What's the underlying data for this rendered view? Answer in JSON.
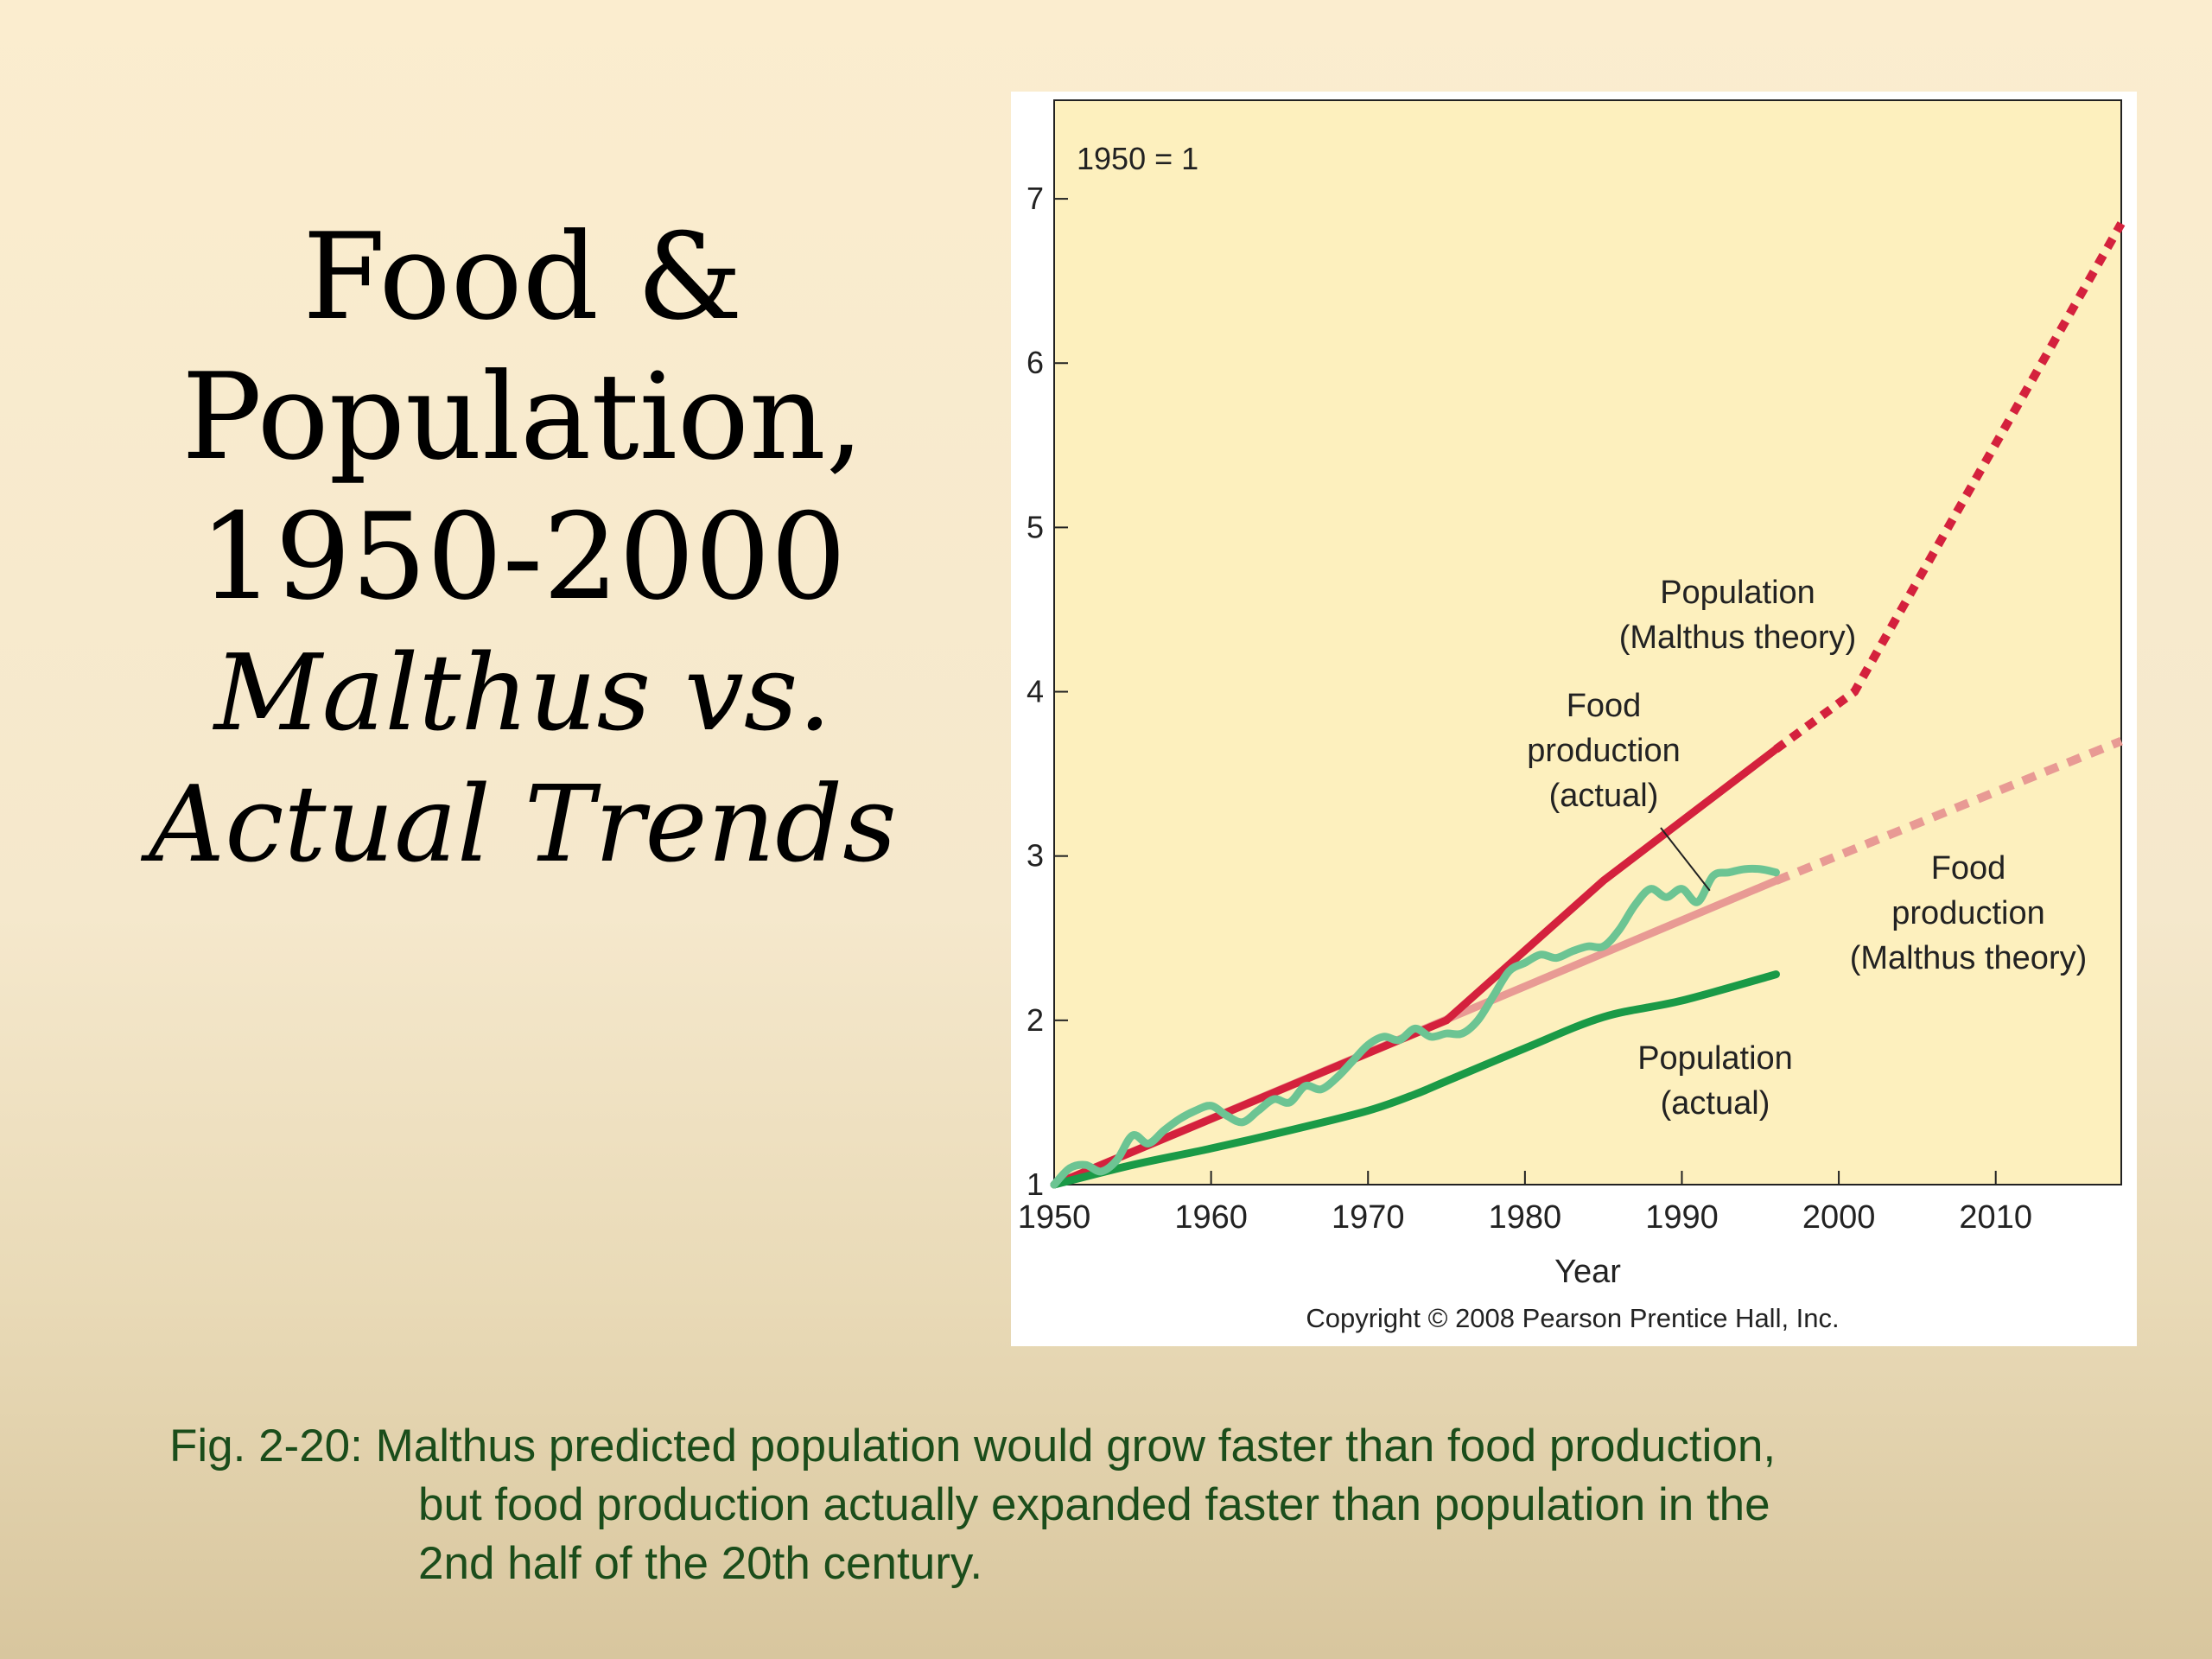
{
  "slide": {
    "title_lines": [
      "Food &",
      "Population,",
      "1950-2000"
    ],
    "subtitle_lines": [
      "Malthus vs.",
      "Actual Trends"
    ],
    "caption_lines": [
      "Fig. 2-20: Malthus predicted population would grow faster than food production,",
      "but food production actually expanded faster than population in the",
      "2nd half of the 20th century."
    ]
  },
  "chart_data": {
    "type": "line",
    "title": "",
    "index_note": "1950 = 1",
    "xlabel": "Year",
    "ylabel": "",
    "xlim": [
      1950,
      2018
    ],
    "ylim": [
      1,
      7.6
    ],
    "x_ticks": [
      1950,
      1960,
      1970,
      1980,
      1990,
      2000,
      2010
    ],
    "y_ticks": [
      1,
      2,
      3,
      4,
      5,
      6,
      7
    ],
    "grid": false,
    "copyright": "Copyright © 2008 Pearson Prentice Hall, Inc.",
    "series": [
      {
        "name": "Population (Malthus theory)",
        "label_lines": [
          "Population",
          "(Malthus theory)"
        ],
        "color": "#d4213d",
        "solid": {
          "x": [
            1950,
            1960,
            1970,
            1975,
            1985,
            1996
          ],
          "y": [
            1.0,
            1.4,
            1.8,
            2.0,
            2.85,
            3.65
          ]
        },
        "projected": {
          "x": [
            1996,
            2001,
            2018
          ],
          "y": [
            3.65,
            4.0,
            6.85
          ]
        }
      },
      {
        "name": "Food production (Malthus theory)",
        "label_lines": [
          "Food",
          "production",
          "(Malthus theory)"
        ],
        "color": "#e89a94",
        "solid": {
          "x": [
            1950,
            1996
          ],
          "y": [
            1.0,
            2.85
          ]
        },
        "projected": {
          "x": [
            1996,
            2018
          ],
          "y": [
            2.85,
            3.7
          ]
        }
      },
      {
        "name": "Food production (actual)",
        "label_lines": [
          "Food",
          "production",
          "(actual)"
        ],
        "color": "#6cc493",
        "solid": {
          "x": [
            1950,
            1951,
            1952,
            1953,
            1954,
            1955,
            1956,
            1957,
            1958,
            1959,
            1960,
            1961,
            1962,
            1963,
            1964,
            1965,
            1966,
            1967,
            1968,
            1969,
            1970,
            1971,
            1972,
            1973,
            1974,
            1975,
            1976,
            1977,
            1978,
            1979,
            1980,
            1981,
            1982,
            1983,
            1984,
            1985,
            1986,
            1987,
            1988,
            1989,
            1990,
            1991,
            1992,
            1993,
            1994,
            1995,
            1996
          ],
          "y": [
            1.0,
            1.1,
            1.12,
            1.08,
            1.15,
            1.3,
            1.25,
            1.33,
            1.4,
            1.45,
            1.48,
            1.42,
            1.38,
            1.45,
            1.52,
            1.5,
            1.6,
            1.58,
            1.65,
            1.75,
            1.85,
            1.9,
            1.88,
            1.95,
            1.9,
            1.92,
            1.92,
            2.0,
            2.15,
            2.3,
            2.35,
            2.4,
            2.38,
            2.42,
            2.45,
            2.45,
            2.55,
            2.7,
            2.8,
            2.75,
            2.8,
            2.72,
            2.88,
            2.9,
            2.92,
            2.92,
            2.9
          ]
        },
        "annotation_target": [
          1992,
          2.8
        ]
      },
      {
        "name": "Population (actual)",
        "label_lines": [
          "Population",
          "(actual)"
        ],
        "color": "#1a9a47",
        "solid": {
          "x": [
            1950,
            1955,
            1960,
            1965,
            1970,
            1973,
            1975,
            1980,
            1985,
            1990,
            1996
          ],
          "y": [
            1.0,
            1.12,
            1.22,
            1.33,
            1.45,
            1.55,
            1.63,
            1.83,
            2.02,
            2.12,
            2.28
          ]
        }
      }
    ]
  }
}
